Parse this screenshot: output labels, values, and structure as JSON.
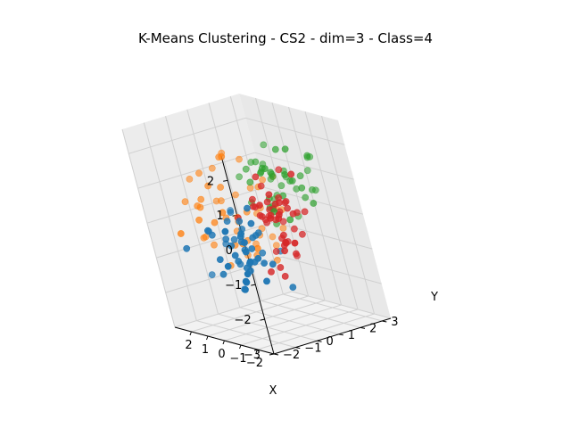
{
  "chart_data": {
    "type": "scatter",
    "projection": "3d",
    "title": "K-Means Clustering - CS2 - dim=3 - Class=4",
    "xlabel": "X",
    "ylabel": "Y",
    "zlabel": "",
    "xlim": [
      -3,
      3
    ],
    "ylim": [
      -2,
      3.4
    ],
    "zlim": [
      -3,
      2.7
    ],
    "x_ticks": [
      "2",
      "1",
      "0",
      "−1",
      "−2"
    ],
    "y_ticks": [
      "3",
      "2",
      "1",
      "0",
      "−1",
      "−2"
    ],
    "z_ticks": [
      "2",
      "1",
      "0",
      "−1",
      "−2",
      "−3"
    ],
    "grid": true,
    "colors": {
      "cluster0": "#1f77b4",
      "cluster1": "#ff7f0e",
      "cluster2": "#2ca02c",
      "cluster3": "#d62728",
      "pane": "#f2f2f2",
      "grid": "#d0d0d0"
    },
    "series": [
      {
        "color": "#1f77b4",
        "seed": 11,
        "count": 50,
        "center": [
          -0.5,
          -0.7,
          -0.5
        ],
        "spread": [
          0.85,
          0.7,
          0.6
        ]
      },
      {
        "color": "#ff7f0e",
        "seed": 23,
        "count": 50,
        "center": [
          1.5,
          0.8,
          0.0
        ],
        "spread": [
          0.7,
          0.9,
          0.7
        ]
      },
      {
        "color": "#2ca02c",
        "seed": 37,
        "count": 45,
        "center": [
          0.3,
          2.1,
          0.7
        ],
        "spread": [
          0.8,
          0.6,
          0.5
        ]
      },
      {
        "color": "#d62728",
        "seed": 53,
        "count": 50,
        "center": [
          -0.9,
          1.0,
          0.1
        ],
        "spread": [
          0.8,
          0.6,
          0.6
        ]
      }
    ]
  }
}
